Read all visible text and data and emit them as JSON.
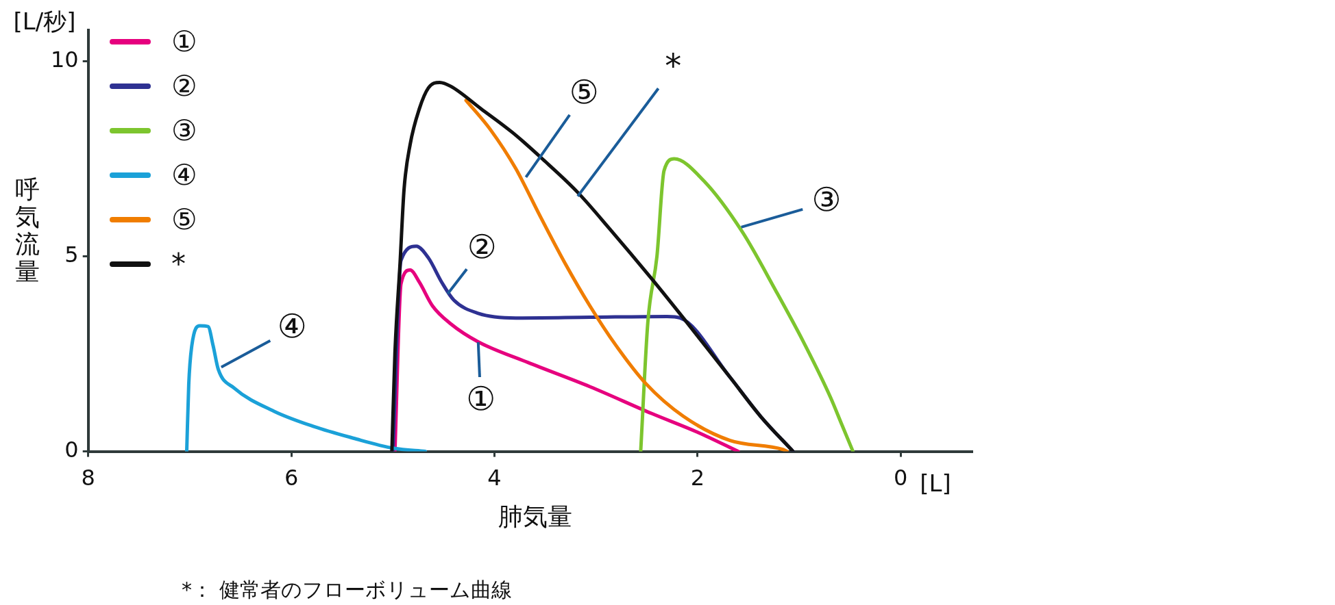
{
  "chart_data": {
    "type": "line",
    "xlabel": "肺気量",
    "ylabel": "呼気流量",
    "xlim": [
      8,
      -0.7
    ],
    "xticks": [
      8,
      6,
      4,
      2,
      0
    ],
    "ylim": [
      0,
      10.8
    ],
    "yticks": [
      0,
      5,
      10
    ],
    "grid": false,
    "legend": "top left",
    "marker": "none",
    "line_style": "solid",
    "series": [
      {
        "name": "①",
        "color": "#e6007e",
        "x": [
          4.98,
          4.92,
          4.83,
          4.74,
          4.61,
          4.43,
          4.16,
          3.67,
          3.06,
          2.45,
          1.99,
          1.6
        ],
        "values": [
          0,
          4.3,
          4.65,
          4.34,
          3.73,
          3.27,
          2.81,
          2.28,
          1.66,
          0.97,
          0.48,
          0
        ]
      },
      {
        "name": "②",
        "color": "#2e3192",
        "x": [
          5.0,
          4.92,
          4.77,
          4.65,
          4.52,
          4.4,
          4.16,
          3.79,
          3.06,
          2.3,
          2.17,
          1.68,
          1.38,
          1.06
        ],
        "values": [
          0,
          4.9,
          5.26,
          4.96,
          4.34,
          3.88,
          3.54,
          3.42,
          3.44,
          3.46,
          3.42,
          1.9,
          0.9,
          0
        ]
      },
      {
        "name": "③",
        "color": "#7dc52e",
        "x": [
          2.56,
          2.49,
          2.4,
          2.33,
          2.23,
          1.94,
          1.56,
          1.23,
          0.96,
          0.69,
          0.58,
          0.47
        ],
        "values": [
          0,
          3.3,
          5.0,
          7.2,
          7.5,
          6.94,
          5.63,
          4.12,
          2.82,
          1.38,
          0.69,
          0
        ]
      },
      {
        "name": "④",
        "color": "#1ba1d8",
        "x": [
          7.03,
          7.01,
          6.98,
          6.9,
          6.82,
          6.77,
          6.72,
          6.56,
          6.17,
          5.78,
          5.39,
          4.99,
          4.68
        ],
        "values": [
          0,
          1.72,
          2.71,
          3.22,
          3.2,
          2.71,
          2.11,
          1.62,
          1.03,
          0.64,
          0.34,
          0.08,
          0
        ]
      },
      {
        "name": "⑤",
        "color": "#f07d00",
        "x": [
          4.28,
          4.04,
          3.79,
          3.55,
          3.3,
          3.06,
          2.81,
          2.51,
          2.14,
          1.68,
          1.16,
          1.12
        ],
        "values": [
          9.0,
          8.25,
          7.25,
          6.03,
          4.8,
          3.73,
          2.74,
          1.74,
          0.9,
          0.28,
          0.05,
          0
        ]
      },
      {
        "name": "*",
        "color": "#111111",
        "x": [
          5.01,
          4.98,
          4.93,
          4.89,
          4.83,
          4.74,
          4.65,
          4.54,
          4.43,
          4.13,
          3.82,
          3.52,
          3.18,
          2.87,
          2.45,
          2.14,
          1.68,
          1.38,
          1.06
        ],
        "values": [
          0,
          2.51,
          4.8,
          6.72,
          7.87,
          8.78,
          9.32,
          9.46,
          9.36,
          8.78,
          8.17,
          7.48,
          6.64,
          5.72,
          4.42,
          3.42,
          1.9,
          0.9,
          0
        ]
      }
    ],
    "annotations": [
      {
        "text": "①",
        "x": 4.16,
        "y": 2.8
      },
      {
        "text": "②",
        "x": 4.46,
        "y": 4.04
      },
      {
        "text": "③",
        "x": 1.57,
        "y": 5.75
      },
      {
        "text": "④",
        "x": 6.69,
        "y": 2.16
      },
      {
        "text": "⑤",
        "x": 3.69,
        "y": 7.03
      },
      {
        "text": "*",
        "x": 3.18,
        "y": 6.54
      },
      "[L/秒]",
      "[L]",
      "*： 健常者のフローボリューム曲線"
    ]
  }
}
